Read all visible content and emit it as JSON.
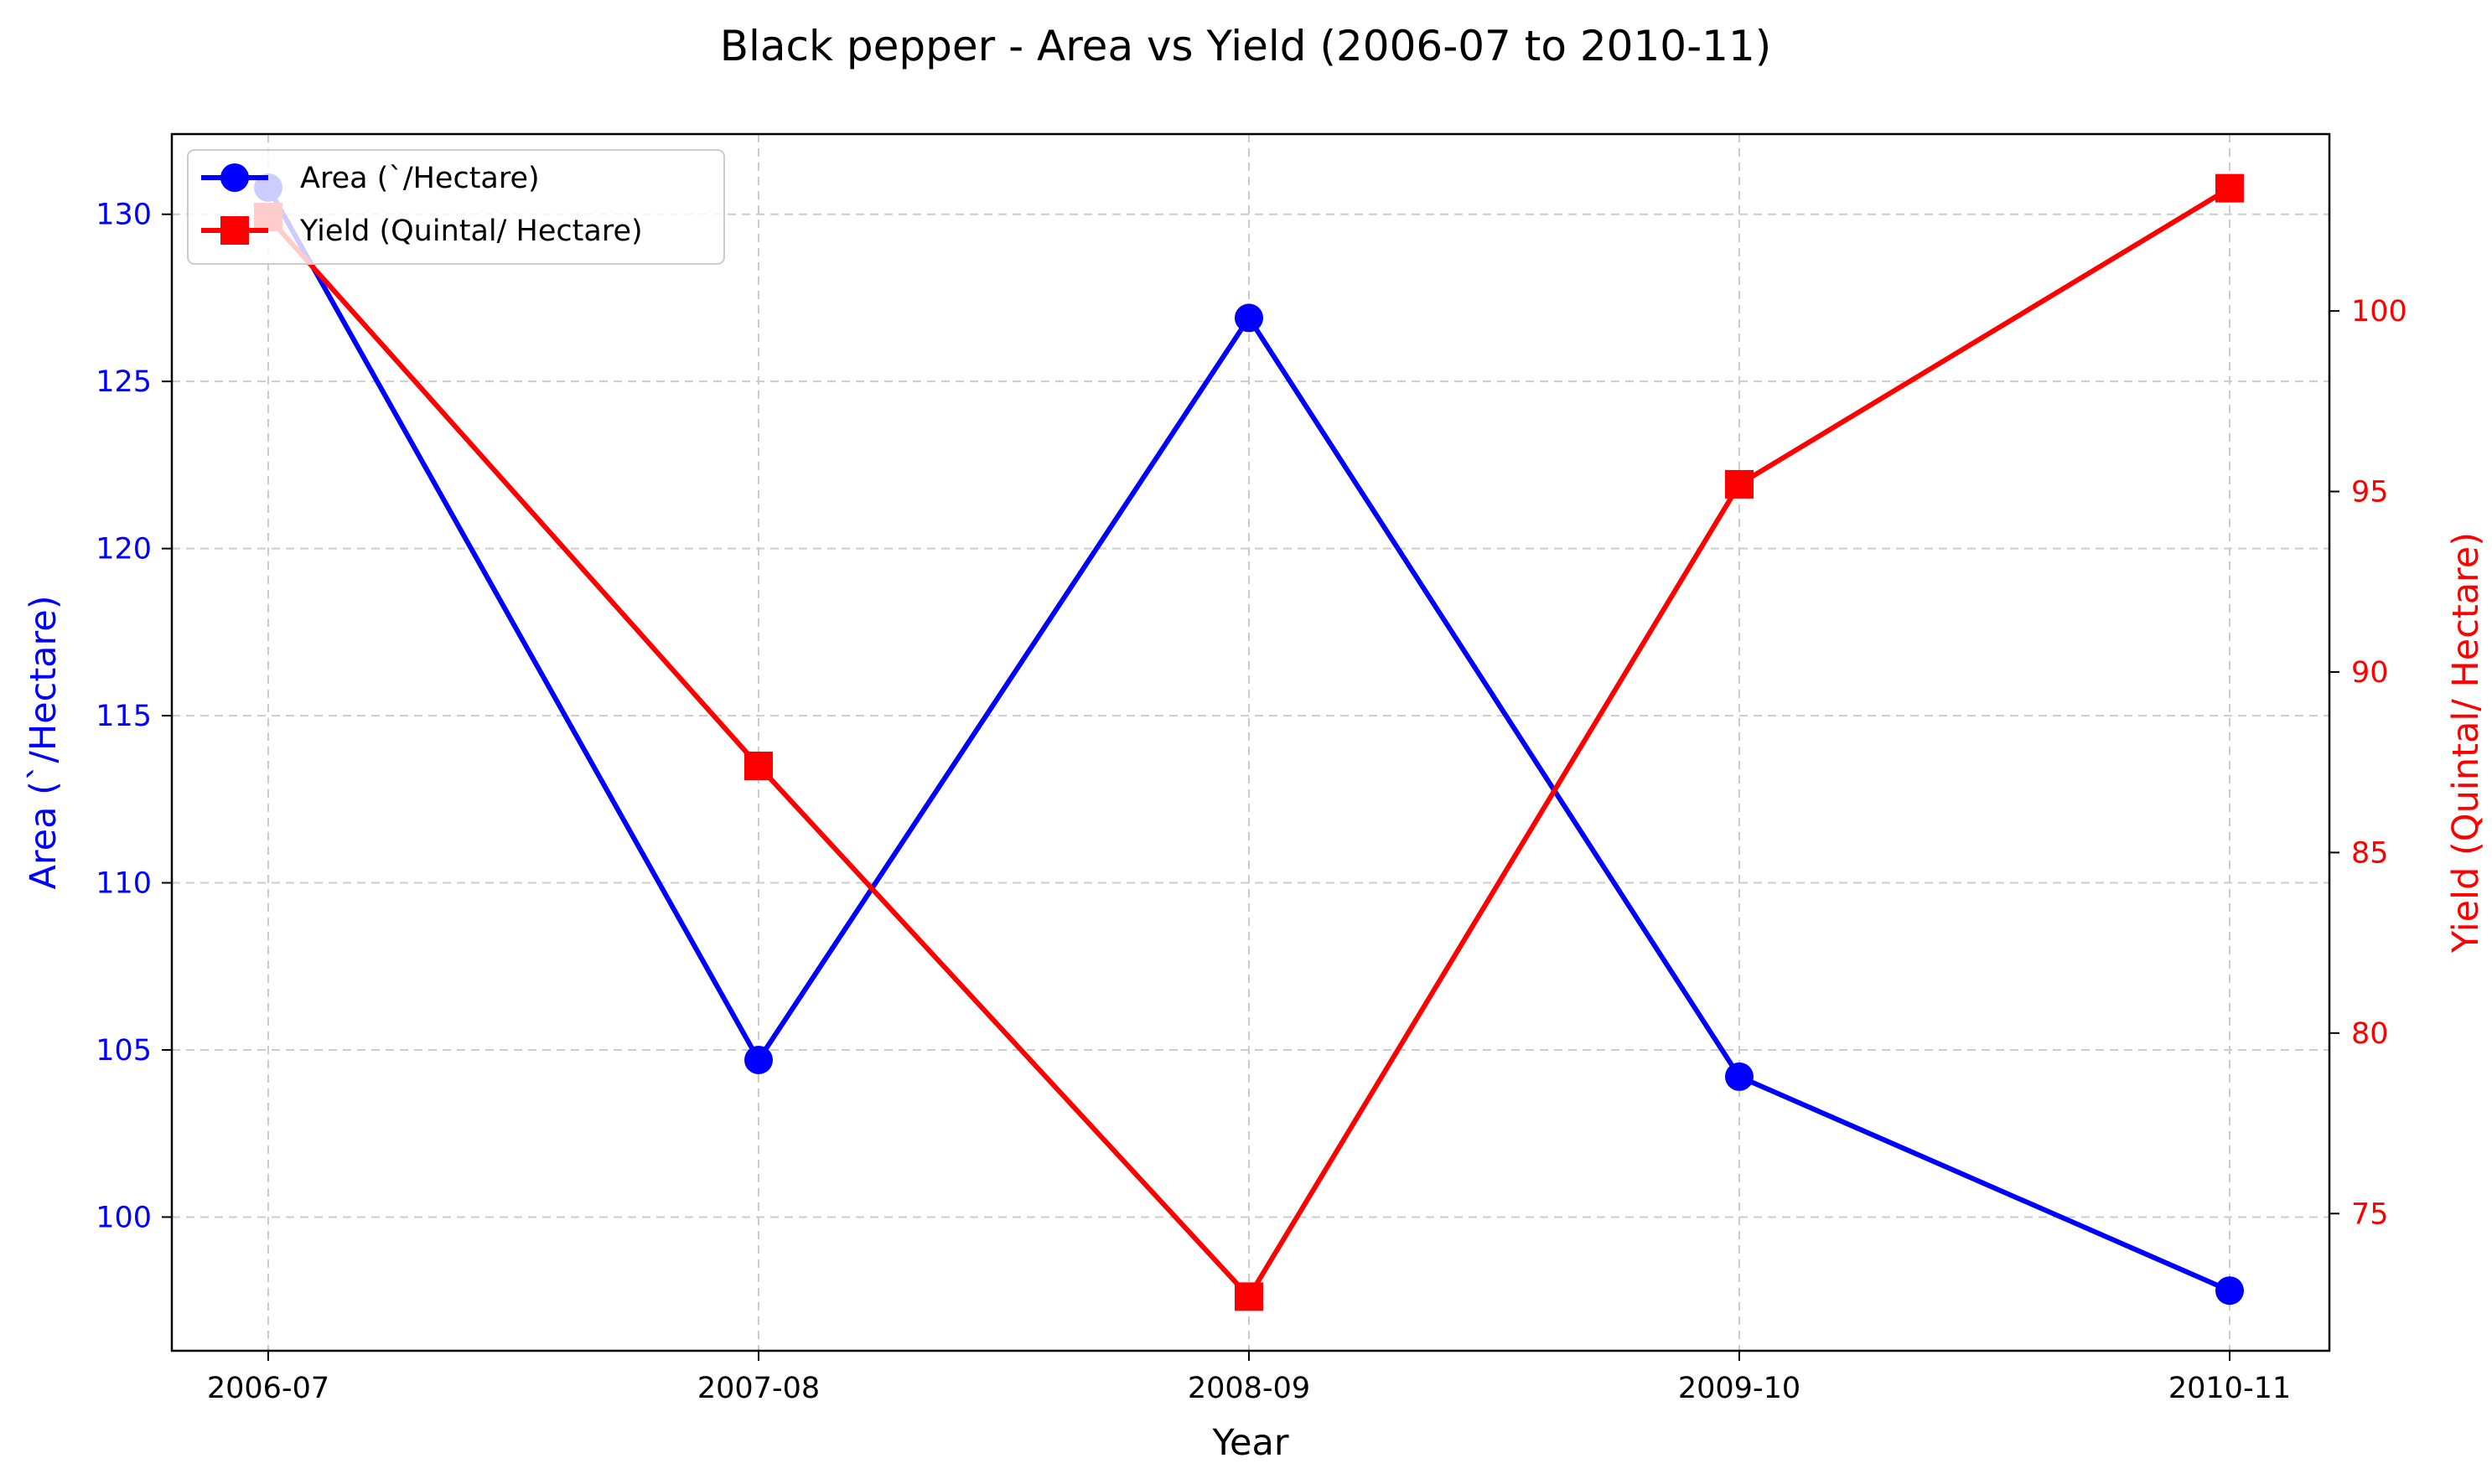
{
  "colors": {
    "area": "#0000ff",
    "yield": "#ff0000",
    "grid": "#cccccc",
    "axis": "#000000"
  },
  "chart_data": {
    "type": "line",
    "title": "Black pepper - Area vs Yield (2006-07 to 2010-11)",
    "xlabel": "Year",
    "categories": [
      "2006-07",
      "2007-08",
      "2008-09",
      "2009-10",
      "2010-11"
    ],
    "left_axis": {
      "label": "Area (`/Hectare)",
      "ylim": [
        96,
        132.4
      ],
      "ticks": [
        100,
        105,
        110,
        115,
        120,
        125,
        130
      ]
    },
    "right_axis": {
      "label": "Yield (Quintal/ Hectare)",
      "ylim": [
        71.2,
        104.9
      ],
      "ticks": [
        75,
        80,
        85,
        90,
        95,
        100
      ]
    },
    "series": [
      {
        "name": "Area (`/Hectare)",
        "axis": "left",
        "marker": "circle",
        "values": [
          130.8,
          104.7,
          126.9,
          104.2,
          97.8
        ]
      },
      {
        "name": "Yield (Quintal/ Hectare)",
        "axis": "right",
        "marker": "square",
        "values": [
          102.6,
          87.4,
          72.7,
          95.2,
          103.4
        ]
      }
    ],
    "grid": true,
    "legend_position": "top-left"
  }
}
